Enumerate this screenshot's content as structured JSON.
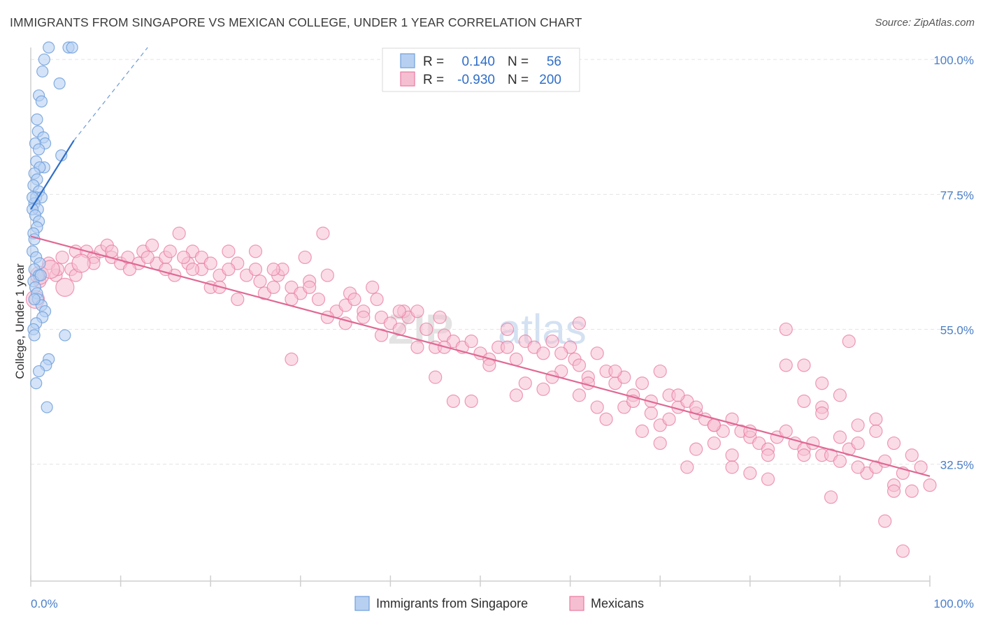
{
  "title": "IMMIGRANTS FROM SINGAPORE VS MEXICAN COLLEGE, UNDER 1 YEAR CORRELATION CHART",
  "source": "Source: ZipAtlas.com",
  "watermark": {
    "zip": "ZIP",
    "atlas": "atlas"
  },
  "colors": {
    "blue": "#6f9fdc",
    "blue_fill": "#b7d0f1",
    "blue_line": "#2f6ec7",
    "pink": "#e97aa0",
    "pink_fill": "#f5bfd1",
    "pink_line": "#e06894",
    "tick_text": "#4a7fc8"
  },
  "chart_data": {
    "type": "scatter",
    "title": "IMMIGRANTS FROM SINGAPORE VS MEXICAN COLLEGE, UNDER 1 YEAR CORRELATION CHART",
    "xlabel": "",
    "ylabel": "College, Under 1 year",
    "xlim": [
      0,
      100
    ],
    "ylim": [
      13,
      102
    ],
    "x_tick_labels": [
      "0.0%",
      "100.0%"
    ],
    "y_ticks": [
      32.5,
      55.0,
      77.5,
      100.0
    ],
    "y_tick_labels": [
      "32.5%",
      "55.0%",
      "77.5%",
      "100.0%"
    ],
    "legend": {
      "rows": [
        {
          "r_label": "R =",
          "r": "0.140",
          "n_label": "N =",
          "n": "56"
        },
        {
          "r_label": "R =",
          "r": "-0.930",
          "n_label": "N =",
          "n": "200"
        }
      ]
    },
    "bottom_legend": [
      "Immigrants from Singapore",
      "Mexicans"
    ],
    "series": [
      {
        "name": "Immigrants from Singapore",
        "trend": {
          "x0": 0,
          "y0": 75,
          "x1": 4.8,
          "y1": 86.5,
          "dash_to_x": 13,
          "dash_to_y": 102
        },
        "points": [
          [
            2.0,
            102
          ],
          [
            4.2,
            102
          ],
          [
            4.6,
            102
          ],
          [
            1.5,
            100
          ],
          [
            1.3,
            98
          ],
          [
            3.2,
            96
          ],
          [
            0.9,
            94
          ],
          [
            1.2,
            93
          ],
          [
            0.7,
            90
          ],
          [
            0.8,
            88
          ],
          [
            1.4,
            87
          ],
          [
            1.6,
            86
          ],
          [
            0.5,
            86
          ],
          [
            0.9,
            85
          ],
          [
            3.4,
            84
          ],
          [
            0.6,
            83
          ],
          [
            1.5,
            82
          ],
          [
            1.0,
            82
          ],
          [
            0.4,
            81
          ],
          [
            0.7,
            80
          ],
          [
            0.3,
            79
          ],
          [
            0.9,
            78
          ],
          [
            0.6,
            77
          ],
          [
            1.2,
            77
          ],
          [
            0.4,
            76
          ],
          [
            0.8,
            75
          ],
          [
            0.2,
            75
          ],
          [
            0.5,
            74
          ],
          [
            0.9,
            73
          ],
          [
            0.7,
            72
          ],
          [
            0.3,
            71
          ],
          [
            0.4,
            70
          ],
          [
            0.2,
            68
          ],
          [
            0.6,
            67
          ],
          [
            1.0,
            66
          ],
          [
            0.4,
            65
          ],
          [
            0.9,
            64
          ],
          [
            0.3,
            63
          ],
          [
            0.5,
            62
          ],
          [
            0.7,
            61
          ],
          [
            0.8,
            60
          ],
          [
            1.2,
            59
          ],
          [
            1.6,
            58
          ],
          [
            1.3,
            57
          ],
          [
            0.6,
            56
          ],
          [
            0.3,
            55
          ],
          [
            0.4,
            54
          ],
          [
            3.8,
            54
          ],
          [
            2.0,
            50
          ],
          [
            1.7,
            49
          ],
          [
            0.9,
            48
          ],
          [
            0.6,
            46
          ],
          [
            1.8,
            42
          ],
          [
            0.4,
            60
          ],
          [
            1.1,
            64
          ],
          [
            0.2,
            77
          ]
        ],
        "big_points": []
      },
      {
        "name": "Mexicans",
        "trend": {
          "x0": 0,
          "y0": 70.5,
          "x1": 100,
          "y1": 30.5
        },
        "points": [
          [
            2,
            66
          ],
          [
            2.8,
            64
          ],
          [
            3.5,
            67
          ],
          [
            4.5,
            65
          ],
          [
            5,
            68
          ],
          [
            6.2,
            68
          ],
          [
            7,
            67
          ],
          [
            7.8,
            68
          ],
          [
            8.5,
            69
          ],
          [
            9,
            67
          ],
          [
            10,
            66
          ],
          [
            10.8,
            67
          ],
          [
            12,
            66
          ],
          [
            12.5,
            68
          ],
          [
            13.5,
            69
          ],
          [
            14,
            66
          ],
          [
            15,
            67
          ],
          [
            15.5,
            68
          ],
          [
            16,
            64
          ],
          [
            16.5,
            71
          ],
          [
            17.5,
            66
          ],
          [
            18,
            68
          ],
          [
            19,
            65
          ],
          [
            20,
            62
          ],
          [
            21,
            64
          ],
          [
            22,
            68
          ],
          [
            23,
            66
          ],
          [
            24,
            64
          ],
          [
            25,
            65
          ],
          [
            25.5,
            63
          ],
          [
            26,
            61
          ],
          [
            27,
            62
          ],
          [
            27.5,
            64
          ],
          [
            28,
            65
          ],
          [
            29,
            62
          ],
          [
            30,
            61
          ],
          [
            30.5,
            67
          ],
          [
            31,
            63
          ],
          [
            32,
            60
          ],
          [
            32.5,
            71
          ],
          [
            33,
            64
          ],
          [
            34,
            58
          ],
          [
            35,
            59
          ],
          [
            35.5,
            61
          ],
          [
            36,
            60
          ],
          [
            37,
            58
          ],
          [
            38,
            62
          ],
          [
            38.5,
            60
          ],
          [
            39,
            57
          ],
          [
            40,
            56
          ],
          [
            41,
            55
          ],
          [
            41.5,
            58
          ],
          [
            42,
            57
          ],
          [
            43,
            58
          ],
          [
            44,
            55
          ],
          [
            45,
            52
          ],
          [
            45.5,
            57
          ],
          [
            46,
            54
          ],
          [
            47,
            53
          ],
          [
            48,
            52
          ],
          [
            49,
            53
          ],
          [
            50,
            51
          ],
          [
            51,
            50
          ],
          [
            52,
            52
          ],
          [
            53,
            55
          ],
          [
            54,
            50
          ],
          [
            55,
            53
          ],
          [
            56,
            52
          ],
          [
            57,
            51
          ],
          [
            58,
            53
          ],
          [
            59,
            48
          ],
          [
            60,
            52
          ],
          [
            60.5,
            50
          ],
          [
            61,
            49
          ],
          [
            62,
            47
          ],
          [
            63,
            51
          ],
          [
            64,
            48
          ],
          [
            65,
            46
          ],
          [
            66,
            47
          ],
          [
            67,
            44
          ],
          [
            68,
            46
          ],
          [
            69,
            43
          ],
          [
            70,
            48
          ],
          [
            71,
            44
          ],
          [
            72,
            42
          ],
          [
            73,
            43
          ],
          [
            74,
            41
          ],
          [
            75,
            40
          ],
          [
            76,
            39
          ],
          [
            77,
            38
          ],
          [
            78,
            40
          ],
          [
            79,
            38
          ],
          [
            80,
            37
          ],
          [
            81,
            36
          ],
          [
            82,
            35
          ],
          [
            83,
            37
          ],
          [
            84,
            38
          ],
          [
            85,
            36
          ],
          [
            86,
            35
          ],
          [
            87,
            36
          ],
          [
            88,
            34
          ],
          [
            89,
            34
          ],
          [
            90,
            33
          ],
          [
            91,
            35
          ],
          [
            92,
            36
          ],
          [
            93,
            31
          ],
          [
            94,
            32
          ],
          [
            95,
            33
          ],
          [
            96,
            29
          ],
          [
            97,
            31
          ],
          [
            98,
            28
          ],
          [
            99,
            32
          ],
          [
            100,
            29
          ],
          [
            29,
            50
          ],
          [
            46,
            52
          ],
          [
            54,
            44
          ],
          [
            58,
            47
          ],
          [
            61,
            56
          ],
          [
            64,
            40
          ],
          [
            68,
            38
          ],
          [
            70,
            39
          ],
          [
            72,
            44
          ],
          [
            74,
            42
          ],
          [
            76,
            36
          ],
          [
            78,
            34
          ],
          [
            80,
            31
          ],
          [
            82,
            30
          ],
          [
            84,
            49
          ],
          [
            86,
            49
          ],
          [
            88,
            46
          ],
          [
            90,
            44
          ],
          [
            92,
            39
          ],
          [
            94,
            40
          ],
          [
            96,
            36
          ],
          [
            98,
            34
          ],
          [
            62,
            46
          ],
          [
            66,
            42
          ],
          [
            70,
            36
          ],
          [
            74,
            35
          ],
          [
            78,
            32
          ],
          [
            82,
            34
          ],
          [
            86,
            34
          ],
          [
            88,
            42
          ],
          [
            90,
            37
          ],
          [
            92,
            32
          ],
          [
            94,
            38
          ],
          [
            96,
            28
          ],
          [
            97,
            18
          ],
          [
            95,
            23
          ],
          [
            89,
            27
          ],
          [
            91,
            53
          ],
          [
            88,
            41
          ],
          [
            84,
            55
          ],
          [
            86,
            43
          ],
          [
            80,
            38
          ],
          [
            76,
            39
          ],
          [
            73,
            32
          ],
          [
            71,
            40
          ],
          [
            69,
            41
          ],
          [
            67,
            43
          ],
          [
            65,
            48
          ],
          [
            63,
            42
          ],
          [
            61,
            44
          ],
          [
            59,
            51
          ],
          [
            57,
            45
          ],
          [
            55,
            46
          ],
          [
            53,
            52
          ],
          [
            51,
            49
          ],
          [
            49,
            43
          ],
          [
            47,
            43
          ],
          [
            45,
            47
          ],
          [
            43,
            52
          ],
          [
            41,
            58
          ],
          [
            39,
            54
          ],
          [
            37,
            57
          ],
          [
            35,
            56
          ],
          [
            33,
            57
          ],
          [
            31,
            62
          ],
          [
            29,
            60
          ],
          [
            27,
            65
          ],
          [
            25,
            68
          ],
          [
            23,
            60
          ],
          [
            21,
            62
          ],
          [
            19,
            67
          ],
          [
            17,
            67
          ],
          [
            15,
            65
          ],
          [
            13,
            67
          ],
          [
            11,
            65
          ],
          [
            9,
            68
          ],
          [
            7,
            66
          ],
          [
            5,
            64
          ],
          [
            3,
            65
          ],
          [
            1,
            63
          ],
          [
            18,
            65
          ],
          [
            20,
            66
          ],
          [
            22,
            65
          ]
        ],
        "big_points": [
          [
            0.5,
            60
          ],
          [
            1,
            64
          ],
          [
            2.2,
            65
          ],
          [
            3.8,
            62
          ],
          [
            5.6,
            66
          ]
        ]
      }
    ]
  }
}
